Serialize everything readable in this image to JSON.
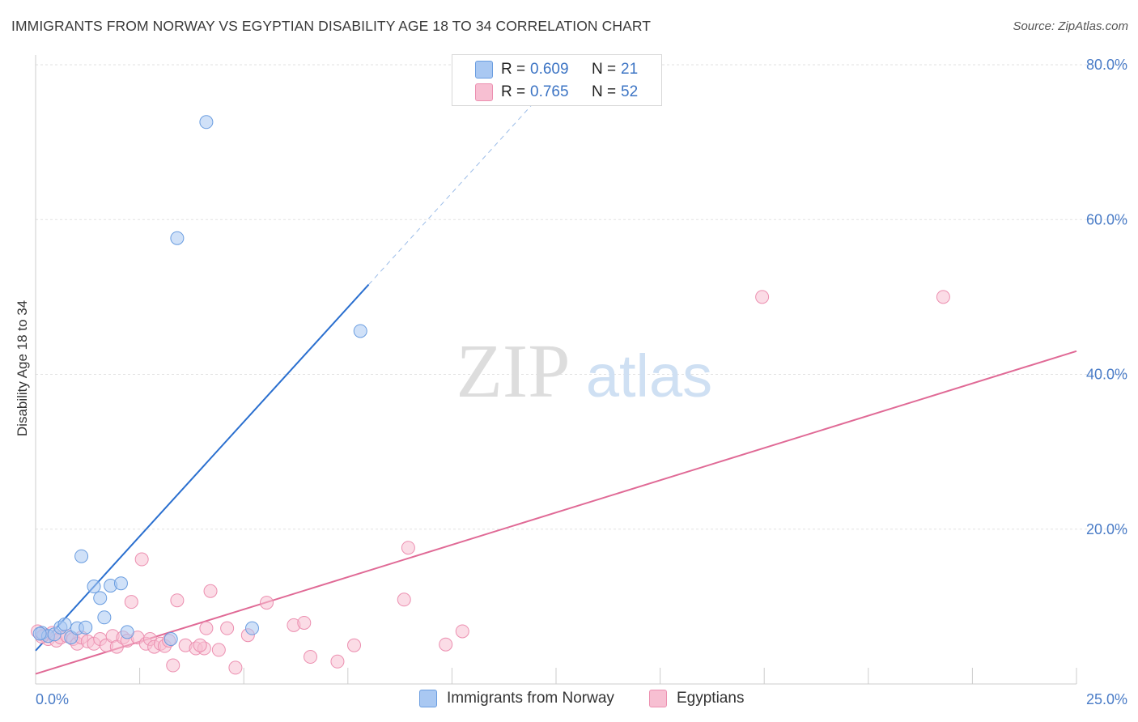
{
  "header": {
    "title": "IMMIGRANTS FROM NORWAY VS EGYPTIAN DISABILITY AGE 18 TO 34 CORRELATION CHART",
    "source": "Source: ZipAtlas.com"
  },
  "watermark": {
    "zip": "ZIP",
    "atlas": "atlas"
  },
  "legend_top": {
    "rows": [
      {
        "r_label": "R =",
        "r_value": "0.609",
        "n_label": "N =",
        "n_value": "21"
      },
      {
        "r_label": "R =",
        "r_value": "0.765",
        "n_label": "N =",
        "n_value": "52"
      }
    ]
  },
  "legend_bottom": {
    "items": [
      {
        "label": "Immigrants from Norway"
      },
      {
        "label": "Egyptians"
      }
    ]
  },
  "colors": {
    "norway_fill": "#a9c8f2",
    "norway_stroke": "#6a9de0",
    "norway_line": "#2a6fcf",
    "egypt_fill": "#f7bfd2",
    "egypt_stroke": "#ec8fb0",
    "egypt_line": "#e06a96",
    "tick_label": "#4a7cc7",
    "grid": "#e2e2e2"
  },
  "chart_data": {
    "type": "scatter",
    "title": "IMMIGRANTS FROM NORWAY VS EGYPTIAN DISABILITY AGE 18 TO 34 CORRELATION CHART",
    "xlabel": "",
    "ylabel": "Disability Age 18 to 34",
    "xlim": [
      0,
      25
    ],
    "ylim": [
      0,
      80
    ],
    "x_tick_labels": [
      "0.0%",
      "25.0%"
    ],
    "y_tick_labels": [
      "20.0%",
      "40.0%",
      "60.0%",
      "80.0%"
    ],
    "y_tick_values": [
      20,
      40,
      60,
      80
    ],
    "grid": true,
    "legend_position": "top-center",
    "series": [
      {
        "name": "Immigrants from Norway",
        "r": 0.609,
        "n": 21,
        "points": [
          [
            0.15,
            6.6
          ],
          [
            0.3,
            6.2
          ],
          [
            0.45,
            6.4
          ],
          [
            0.6,
            7.3
          ],
          [
            0.7,
            7.7
          ],
          [
            0.85,
            6.0
          ],
          [
            1.0,
            7.2
          ],
          [
            1.1,
            16.5
          ],
          [
            1.2,
            7.3
          ],
          [
            1.4,
            12.6
          ],
          [
            1.55,
            11.1
          ],
          [
            1.65,
            8.6
          ],
          [
            1.8,
            12.7
          ],
          [
            2.05,
            13.0
          ],
          [
            2.2,
            6.7
          ],
          [
            3.25,
            5.8
          ],
          [
            3.4,
            57.6
          ],
          [
            4.1,
            72.6
          ],
          [
            5.2,
            7.2
          ],
          [
            7.8,
            45.6
          ],
          [
            0.1,
            6.5
          ]
        ],
        "trend": {
          "x": [
            0,
            8.0
          ],
          "y": [
            4.3,
            51.6
          ]
        },
        "trend_extension": {
          "x": [
            8.0,
            12.0
          ],
          "y": [
            51.6,
            75.3
          ]
        }
      },
      {
        "name": "Egyptians",
        "r": 0.765,
        "n": 52,
        "points": [
          [
            0.05,
            6.8
          ],
          [
            0.2,
            6.3
          ],
          [
            0.3,
            5.8
          ],
          [
            0.4,
            6.6
          ],
          [
            0.5,
            5.6
          ],
          [
            0.6,
            6.0
          ],
          [
            0.75,
            6.2
          ],
          [
            0.9,
            5.8
          ],
          [
            1.0,
            5.2
          ],
          [
            1.1,
            6.0
          ],
          [
            1.25,
            5.5
          ],
          [
            1.4,
            5.2
          ],
          [
            1.55,
            5.8
          ],
          [
            1.7,
            5.0
          ],
          [
            1.85,
            6.2
          ],
          [
            1.95,
            4.8
          ],
          [
            2.1,
            6.0
          ],
          [
            2.2,
            5.6
          ],
          [
            2.3,
            10.6
          ],
          [
            2.45,
            6.0
          ],
          [
            2.55,
            16.1
          ],
          [
            2.65,
            5.2
          ],
          [
            2.75,
            5.8
          ],
          [
            2.85,
            4.8
          ],
          [
            3.0,
            5.2
          ],
          [
            3.1,
            4.9
          ],
          [
            3.2,
            5.6
          ],
          [
            3.3,
            2.4
          ],
          [
            3.4,
            10.8
          ],
          [
            3.6,
            5.0
          ],
          [
            3.85,
            4.6
          ],
          [
            4.05,
            4.6
          ],
          [
            4.1,
            7.2
          ],
          [
            4.2,
            12.0
          ],
          [
            4.4,
            4.4
          ],
          [
            4.6,
            7.2
          ],
          [
            4.8,
            2.1
          ],
          [
            5.1,
            6.3
          ],
          [
            5.55,
            10.5
          ],
          [
            6.2,
            7.6
          ],
          [
            6.45,
            7.9
          ],
          [
            6.6,
            3.5
          ],
          [
            7.25,
            2.9
          ],
          [
            7.65,
            5.0
          ],
          [
            8.85,
            10.9
          ],
          [
            8.95,
            17.6
          ],
          [
            9.85,
            5.1
          ],
          [
            10.25,
            6.8
          ],
          [
            17.45,
            50.0
          ],
          [
            21.8,
            50.0
          ],
          [
            0.15,
            6.1
          ],
          [
            3.95,
            5.0
          ]
        ],
        "trend": {
          "x": [
            0,
            25
          ],
          "y": [
            1.3,
            43.0
          ]
        }
      }
    ]
  }
}
